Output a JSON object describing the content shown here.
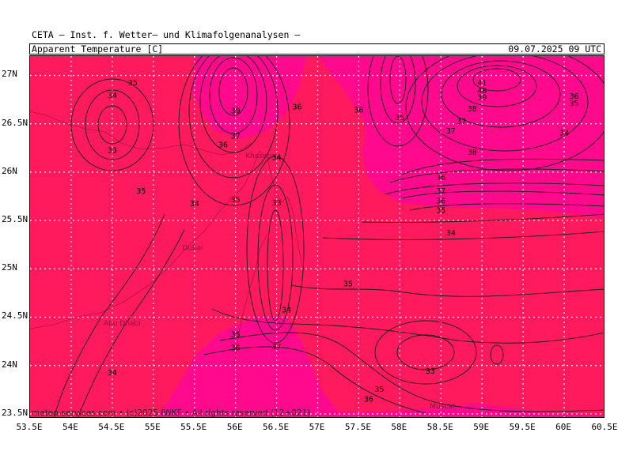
{
  "header": {
    "title": "CETA — Inst. f. Wetter— und Klimafolgenanalysen —",
    "variable": "Apparent_Temperature [C]",
    "valid_time": "09.07.2025 09 UTC"
  },
  "footer": {
    "copyright": "meteo-services.com • (c)2025 IWKF • All rights reserved (12+021)"
  },
  "axes": {
    "lat_labels": [
      "27N",
      "26.5N",
      "26N",
      "25.5N",
      "25N",
      "24.5N",
      "24N",
      "23.5N"
    ],
    "lon_labels": [
      "53.5E",
      "54E",
      "54.5E",
      "55E",
      "55.5E",
      "56E",
      "56.5E",
      "57E",
      "57.5E",
      "58E",
      "58.5E",
      "59E",
      "59.5E",
      "60E",
      "60.5E"
    ],
    "lat_values": [
      27,
      26.5,
      26,
      25.5,
      25,
      24.5,
      24,
      23.5
    ],
    "lon_values": [
      53.5,
      54,
      54.5,
      55,
      55.5,
      56,
      56.5,
      57,
      57.5,
      58,
      58.5,
      59,
      59.5,
      60,
      60.5
    ],
    "lat_range": [
      23.45,
      27.2
    ],
    "lon_range": [
      53.5,
      60.5
    ]
  },
  "colors": {
    "base_fill": "#ff1a5e",
    "warm_fill": "#ff0a8c",
    "grid": "#ffffff",
    "contour": "#1a1a1a"
  },
  "places": [
    {
      "name": "Khasab",
      "lon": 56.28,
      "lat": 26.17
    },
    {
      "name": "Dubai",
      "lon": 55.48,
      "lat": 25.22
    },
    {
      "name": "Abu Dhabi",
      "lon": 54.62,
      "lat": 24.44
    },
    {
      "name": "Muscat",
      "lon": 58.52,
      "lat": 23.58
    }
  ],
  "contour_labels": [
    {
      "value": "35",
      "lon": 54.75,
      "lat": 26.93
    },
    {
      "value": "34",
      "lon": 54.5,
      "lat": 26.8
    },
    {
      "value": "33",
      "lon": 54.5,
      "lat": 26.23
    },
    {
      "value": "35",
      "lon": 54.85,
      "lat": 25.81
    },
    {
      "value": "34",
      "lon": 55.5,
      "lat": 25.68
    },
    {
      "value": "39",
      "lon": 56.0,
      "lat": 26.64
    },
    {
      "value": "37",
      "lon": 56.0,
      "lat": 26.38
    },
    {
      "value": "36",
      "lon": 55.85,
      "lat": 26.29
    },
    {
      "value": "36",
      "lon": 56.75,
      "lat": 26.68
    },
    {
      "value": "34",
      "lon": 56.5,
      "lat": 26.16
    },
    {
      "value": "35",
      "lon": 56.0,
      "lat": 25.72
    },
    {
      "value": "33",
      "lon": 56.5,
      "lat": 25.69
    },
    {
      "value": "36",
      "lon": 57.5,
      "lat": 26.65
    },
    {
      "value": "35",
      "lon": 58.0,
      "lat": 26.57
    },
    {
      "value": "41",
      "lon": 59.0,
      "lat": 26.93
    },
    {
      "value": "40",
      "lon": 59.0,
      "lat": 26.85
    },
    {
      "value": "39",
      "lon": 59.0,
      "lat": 26.78
    },
    {
      "value": "38",
      "lon": 58.88,
      "lat": 26.66
    },
    {
      "value": "37",
      "lon": 58.75,
      "lat": 26.53
    },
    {
      "value": "37",
      "lon": 58.62,
      "lat": 26.43
    },
    {
      "value": "38",
      "lon": 58.88,
      "lat": 26.21
    },
    {
      "value": "36",
      "lon": 60.12,
      "lat": 26.79
    },
    {
      "value": "35",
      "lon": 60.12,
      "lat": 26.72
    },
    {
      "value": "34",
      "lon": 60.0,
      "lat": 26.41
    },
    {
      "value": "36",
      "lon": 58.5,
      "lat": 25.95
    },
    {
      "value": "37",
      "lon": 58.5,
      "lat": 25.81
    },
    {
      "value": "36",
      "lon": 58.5,
      "lat": 25.71
    },
    {
      "value": "35",
      "lon": 58.5,
      "lat": 25.61
    },
    {
      "value": "34",
      "lon": 58.62,
      "lat": 25.38
    },
    {
      "value": "35",
      "lon": 57.37,
      "lat": 24.85
    },
    {
      "value": "34",
      "lon": 56.62,
      "lat": 24.58
    },
    {
      "value": "35",
      "lon": 56.0,
      "lat": 24.33
    },
    {
      "value": "36",
      "lon": 56.0,
      "lat": 24.19
    },
    {
      "value": "37",
      "lon": 56.5,
      "lat": 24.2
    },
    {
      "value": "34",
      "lon": 54.5,
      "lat": 23.93
    },
    {
      "value": "33",
      "lon": 58.37,
      "lat": 23.95
    },
    {
      "value": "35",
      "lon": 57.75,
      "lat": 23.76
    },
    {
      "value": "36",
      "lon": 57.62,
      "lat": 23.66
    }
  ]
}
